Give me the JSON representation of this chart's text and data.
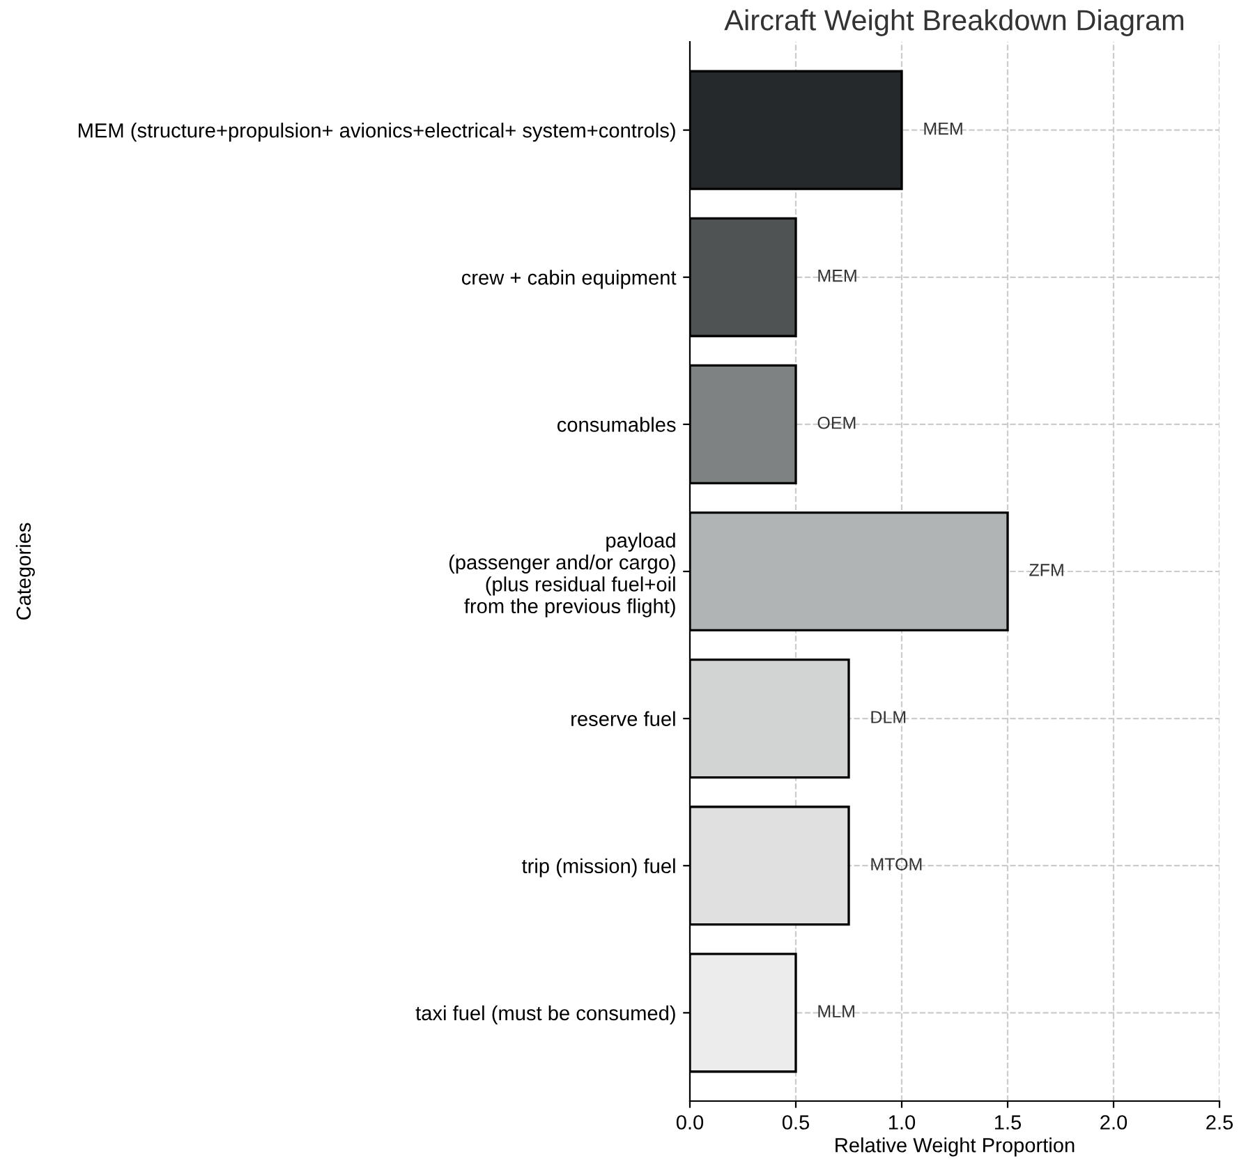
{
  "chart_data": {
    "type": "bar",
    "orientation": "horizontal",
    "title": "Aircraft Weight Breakdown Diagram",
    "xlabel": "Relative Weight Proportion",
    "ylabel": "Categories",
    "categories": [
      "MEM (structure+propulsion+ avionics+electrical+ system+controls)",
      "crew + cabin equipment",
      "consumables",
      "payload\n(passenger and/or cargo)\n(plus residual fuel+oil\nfrom the previous flight)",
      "reserve fuel",
      "trip (mission) fuel",
      "taxi fuel (must be consumed)"
    ],
    "values": [
      1.0,
      0.5,
      0.5,
      1.5,
      0.75,
      0.75,
      0.5
    ],
    "colors": [
      "#25292c",
      "#4f5354",
      "#7f8283",
      "#b1b4b5",
      "#d2d4d4",
      "#e0e0e0",
      "#ececec"
    ],
    "value_labels": [
      "MEM",
      "MEM",
      "OEM",
      "ZFM",
      "DLM",
      "MTOM",
      "MLM"
    ],
    "xlim": [
      0,
      2.5
    ],
    "xticks": [
      {
        "value": 0,
        "label": "0.0"
      },
      0.5,
      {
        "value": 1,
        "label": "1.0"
      },
      1.5,
      {
        "value": 2,
        "label": "2.0"
      },
      2.5
    ],
    "grid": true
  }
}
